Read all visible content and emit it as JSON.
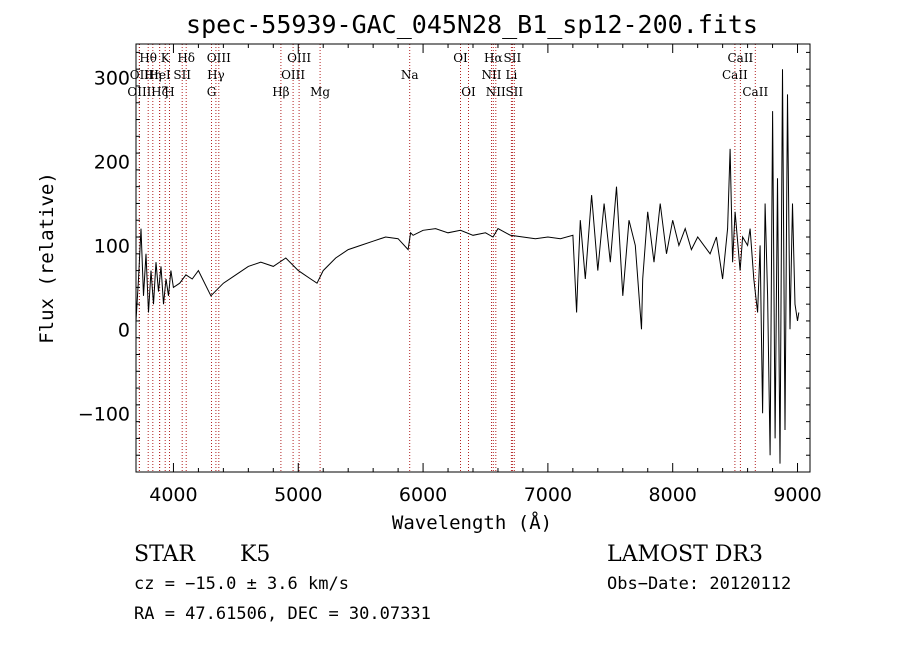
{
  "chart_data": {
    "type": "line",
    "title": "spec-55939-GAC_045N28_B1_sp12-200.fits",
    "xlabel": "Wavelength (Å)",
    "ylabel": "Flux (relative)",
    "xlim": [
      3700,
      9100
    ],
    "ylim": [
      -170,
      340
    ],
    "x_ticks": [
      4000,
      5000,
      6000,
      7000,
      8000,
      9000
    ],
    "y_ticks": [
      -100,
      0,
      100,
      200,
      300
    ],
    "grid": false,
    "series": [
      {
        "x": [
          3700,
          3720,
          3740,
          3760,
          3780,
          3800,
          3820,
          3840,
          3860,
          3880,
          3900,
          3920,
          3940,
          3960,
          3980,
          4000,
          4050,
          4100,
          4150,
          4200,
          4300,
          4400,
          4500,
          4600,
          4700,
          4800,
          4900,
          5000,
          5100,
          5150,
          5200,
          5300,
          5400,
          5500,
          5600,
          5700,
          5800,
          5880,
          5900,
          5920,
          6000,
          6100,
          6200,
          6300,
          6400,
          6500,
          6560,
          6600,
          6700,
          6800,
          6900,
          7000,
          7100,
          7200,
          7230,
          7240,
          7260,
          7300,
          7350,
          7400,
          7450,
          7500,
          7550,
          7600,
          7650,
          7700,
          7750,
          7760,
          7800,
          7850,
          7900,
          7950,
          8000,
          8050,
          8100,
          8150,
          8200,
          8250,
          8300,
          8350,
          8400,
          8440,
          8460,
          8480,
          8500,
          8540,
          8560,
          8600,
          8620,
          8650,
          8680,
          8700,
          8720,
          8740,
          8760,
          8780,
          8800,
          8820,
          8840,
          8860,
          8880,
          8900,
          8920,
          8940,
          8960,
          8980,
          9000,
          9010
        ],
        "y": [
          10,
          60,
          120,
          40,
          90,
          20,
          70,
          30,
          80,
          45,
          75,
          30,
          60,
          40,
          70,
          50,
          55,
          65,
          60,
          70,
          40,
          55,
          65,
          75,
          80,
          75,
          85,
          70,
          60,
          55,
          70,
          85,
          95,
          100,
          105,
          110,
          108,
          95,
          115,
          112,
          118,
          120,
          115,
          118,
          112,
          115,
          110,
          120,
          112,
          110,
          108,
          110,
          108,
          112,
          20,
          60,
          130,
          60,
          160,
          70,
          150,
          80,
          170,
          40,
          130,
          100,
          0,
          60,
          140,
          80,
          150,
          90,
          130,
          100,
          120,
          95,
          110,
          100,
          90,
          110,
          60,
          120,
          215,
          80,
          140,
          70,
          110,
          100,
          120,
          60,
          20,
          100,
          -100,
          150,
          40,
          -150,
          260,
          -130,
          180,
          -160,
          310,
          -120,
          280,
          0,
          150,
          30,
          10,
          20
        ]
      }
    ],
    "spectral_lines": [
      {
        "label": "Hθ",
        "wl": 3798,
        "row": 1
      },
      {
        "label": "OII",
        "wl": 3727,
        "row": 2
      },
      {
        "label": "OIII",
        "wl": 3727,
        "row": 3
      },
      {
        "label": "Hη",
        "wl": 3835,
        "row": 2
      },
      {
        "label": "Hζ",
        "wl": 3889,
        "row": 3
      },
      {
        "label": "K",
        "wl": 3934,
        "row": 1
      },
      {
        "label": "HeI",
        "wl": 3889,
        "row": 2
      },
      {
        "label": "H",
        "wl": 3968,
        "row": 3
      },
      {
        "label": "SII",
        "wl": 4070,
        "row": 2
      },
      {
        "label": "Hδ",
        "wl": 4102,
        "row": 1
      },
      {
        "label": "OIII",
        "wl": 4363,
        "row": 1
      },
      {
        "label": "Hγ",
        "wl": 4340,
        "row": 2
      },
      {
        "label": "G",
        "wl": 4305,
        "row": 3
      },
      {
        "label": "Hβ",
        "wl": 4861,
        "row": 3
      },
      {
        "label": "OIII",
        "wl": 5007,
        "row": 1
      },
      {
        "label": "OIII",
        "wl": 4959,
        "row": 2
      },
      {
        "label": "Mg",
        "wl": 5175,
        "row": 3
      },
      {
        "label": "Na",
        "wl": 5893,
        "row": 2
      },
      {
        "label": "OI",
        "wl": 6300,
        "row": 1
      },
      {
        "label": "OI",
        "wl": 6364,
        "row": 3
      },
      {
        "label": "Hα",
        "wl": 6563,
        "row": 1
      },
      {
        "label": "NII",
        "wl": 6548,
        "row": 2
      },
      {
        "label": "NII",
        "wl": 6583,
        "row": 3
      },
      {
        "label": "SII",
        "wl": 6716,
        "row": 1
      },
      {
        "label": "Li",
        "wl": 6708,
        "row": 2
      },
      {
        "label": "SII",
        "wl": 6731,
        "row": 3
      },
      {
        "label": "CaII",
        "wl": 8542,
        "row": 1
      },
      {
        "label": "CaII",
        "wl": 8498,
        "row": 2
      },
      {
        "label": "CaII",
        "wl": 8662,
        "row": 3
      }
    ],
    "line_color": "#000000",
    "marker_color": "#b22222"
  },
  "info": {
    "class": "STAR",
    "subclass": "K5",
    "survey": "LAMOST DR3",
    "cz": "cz = −15.0 ± 3.6 km/s",
    "obs_date": "Obs−Date: 20120112",
    "coords": "RA =  47.61506, DEC =  30.07331"
  }
}
